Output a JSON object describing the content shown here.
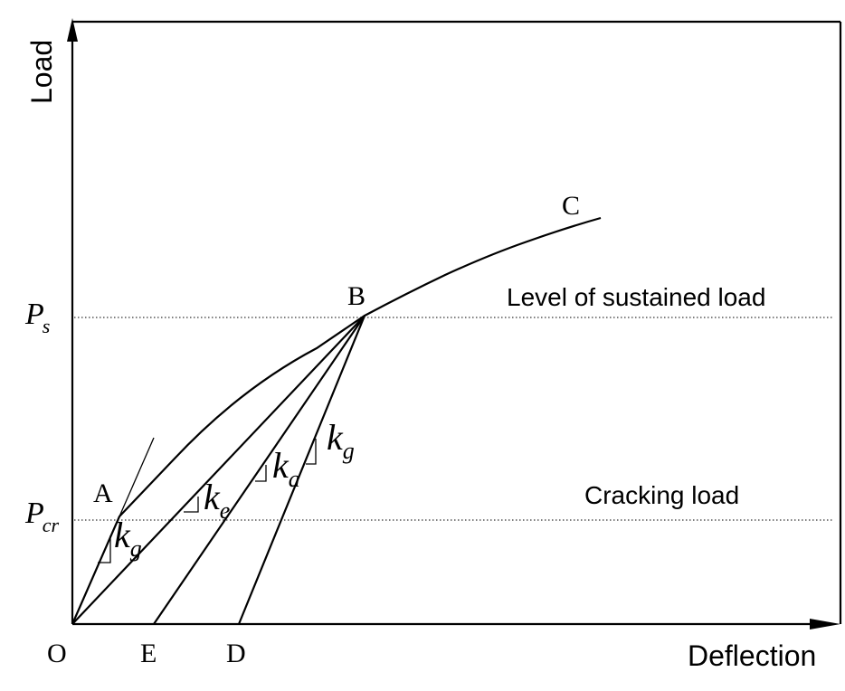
{
  "axes": {
    "x_label": "Deflection",
    "y_label": "Load"
  },
  "levels": {
    "sustained_label": "Level of sustained load",
    "cracking_label": "Cracking load",
    "ps_symbol": "P",
    "ps_sub": "s",
    "pcr_symbol": "P",
    "pcr_sub": "cr"
  },
  "points": {
    "O": "O",
    "A": "A",
    "B": "B",
    "C": "C",
    "D": "D",
    "E": "E"
  },
  "stiffness": {
    "k_symbol": "k",
    "kg_sub": "g",
    "ke_sub": "e",
    "ka_sub": "a"
  }
}
